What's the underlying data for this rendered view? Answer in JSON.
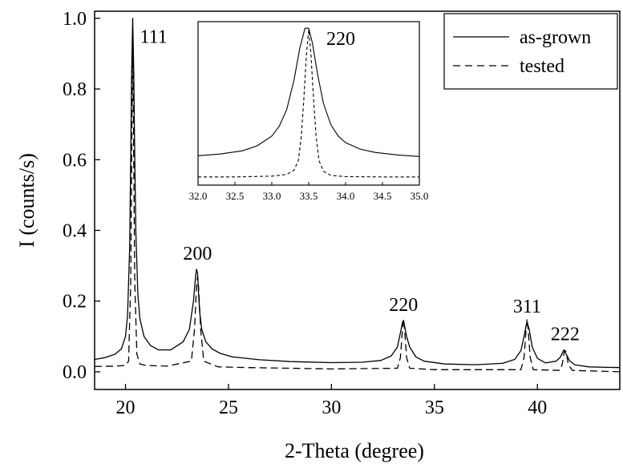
{
  "chart_data": [
    {
      "type": "line",
      "title": "",
      "xlabel": "2-Theta (degree)",
      "ylabel": "I (counts/s)",
      "xlim": [
        18.5,
        44
      ],
      "ylim": [
        -0.05,
        1.02
      ],
      "x_ticks": [
        {
          "value": 20,
          "label": "20"
        },
        {
          "value": 25,
          "label": "25"
        },
        {
          "value": 30,
          "label": "30"
        },
        {
          "value": 35,
          "label": "35"
        },
        {
          "value": 40,
          "label": "40"
        }
      ],
      "y_ticks": [
        {
          "value": 0.0,
          "label": "0.0"
        },
        {
          "value": 0.2,
          "label": "0.2"
        },
        {
          "value": 0.4,
          "label": "0.4"
        },
        {
          "value": 0.6,
          "label": "0.6"
        },
        {
          "value": 0.8,
          "label": "0.8"
        },
        {
          "value": 1.0,
          "label": "1.0"
        }
      ],
      "legend_position": "top-right",
      "grid": false,
      "series": [
        {
          "name": "as-grown",
          "style": "solid",
          "x": [
            18.5,
            19.0,
            19.5,
            19.8,
            20.0,
            20.1,
            20.2,
            20.25,
            20.3,
            20.35,
            20.4,
            20.45,
            20.5,
            20.6,
            20.7,
            20.9,
            21.2,
            21.6,
            22.2,
            22.8,
            23.1,
            23.3,
            23.4,
            23.45,
            23.5,
            23.55,
            23.6,
            23.7,
            23.9,
            24.2,
            24.6,
            25.2,
            26.5,
            28.0,
            30.0,
            31.5,
            32.4,
            32.9,
            33.2,
            33.35,
            33.45,
            33.5,
            33.55,
            33.65,
            33.8,
            34.1,
            34.5,
            35.5,
            37.0,
            38.3,
            38.9,
            39.2,
            39.35,
            39.45,
            39.5,
            39.6,
            39.75,
            40.0,
            40.4,
            40.9,
            41.1,
            41.25,
            41.3,
            41.4,
            41.55,
            41.8,
            42.5,
            44.0
          ],
          "y": [
            0.035,
            0.04,
            0.05,
            0.065,
            0.1,
            0.16,
            0.35,
            0.6,
            0.85,
            1.0,
            0.85,
            0.6,
            0.4,
            0.22,
            0.15,
            0.1,
            0.075,
            0.062,
            0.062,
            0.085,
            0.12,
            0.2,
            0.27,
            0.29,
            0.28,
            0.22,
            0.17,
            0.12,
            0.085,
            0.065,
            0.052,
            0.042,
            0.034,
            0.029,
            0.026,
            0.027,
            0.032,
            0.045,
            0.07,
            0.11,
            0.14,
            0.145,
            0.13,
            0.1,
            0.07,
            0.042,
            0.03,
            0.022,
            0.02,
            0.024,
            0.035,
            0.06,
            0.1,
            0.13,
            0.14,
            0.12,
            0.07,
            0.038,
            0.025,
            0.03,
            0.04,
            0.058,
            0.062,
            0.05,
            0.032,
            0.02,
            0.014,
            0.012
          ]
        },
        {
          "name": "tested",
          "style": "dashed",
          "x": [
            18.5,
            19.5,
            20.0,
            20.15,
            20.25,
            20.3,
            20.35,
            20.4,
            20.45,
            20.55,
            20.7,
            21.0,
            22.0,
            23.2,
            23.35,
            23.45,
            23.5,
            23.55,
            23.65,
            23.8,
            24.5,
            26.0,
            28.0,
            30.0,
            33.2,
            33.35,
            33.45,
            33.5,
            33.55,
            33.65,
            33.8,
            35.0,
            39.2,
            39.35,
            39.45,
            39.5,
            39.55,
            39.65,
            39.8,
            41.1,
            41.2,
            41.3,
            41.35,
            41.4,
            41.5,
            41.7,
            44.0
          ],
          "y": [
            0.015,
            0.016,
            0.018,
            0.03,
            0.25,
            0.6,
            0.96,
            0.6,
            0.25,
            0.05,
            0.022,
            0.018,
            0.016,
            0.03,
            0.12,
            0.24,
            0.27,
            0.24,
            0.12,
            0.03,
            0.014,
            0.012,
            0.01,
            0.008,
            0.01,
            0.04,
            0.12,
            0.15,
            0.12,
            0.04,
            0.01,
            0.006,
            0.006,
            0.04,
            0.12,
            0.15,
            0.12,
            0.04,
            0.006,
            0.004,
            0.02,
            0.055,
            0.06,
            0.055,
            0.02,
            0.004,
            0.0
          ]
        }
      ],
      "annotations": [
        {
          "text": "111",
          "x": 20.35
        },
        {
          "text": "200",
          "x": 23.5
        },
        {
          "text": "220",
          "x": 33.5
        },
        {
          "text": "311",
          "x": 39.5
        },
        {
          "text": "222",
          "x": 41.35
        }
      ]
    },
    {
      "type": "line",
      "title": "",
      "xlabel": "",
      "ylabel": "",
      "xlim": [
        32.0,
        35.0
      ],
      "ylim": [
        0,
        1
      ],
      "x_ticks": [
        {
          "value": 32.0,
          "label": "32.0"
        },
        {
          "value": 32.5,
          "label": "32.5"
        },
        {
          "value": 33.0,
          "label": "33.0"
        },
        {
          "value": 33.5,
          "label": "33.5"
        },
        {
          "value": 34.0,
          "label": "34.0"
        },
        {
          "value": 34.5,
          "label": "34.5"
        },
        {
          "value": 35.0,
          "label": "35.0"
        }
      ],
      "series": [
        {
          "name": "as-grown",
          "style": "solid",
          "x": [
            32.0,
            32.3,
            32.6,
            32.8,
            33.0,
            33.1,
            33.2,
            33.3,
            33.38,
            33.45,
            33.5,
            33.55,
            33.62,
            33.7,
            33.8,
            33.9,
            34.0,
            34.2,
            34.4,
            34.7,
            35.0
          ],
          "y": [
            0.18,
            0.19,
            0.21,
            0.24,
            0.3,
            0.36,
            0.46,
            0.64,
            0.84,
            0.96,
            0.96,
            0.87,
            0.68,
            0.5,
            0.37,
            0.3,
            0.26,
            0.22,
            0.2,
            0.185,
            0.175
          ]
        },
        {
          "name": "tested",
          "style": "dashed",
          "x": [
            32.0,
            32.5,
            33.0,
            33.2,
            33.3,
            33.36,
            33.4,
            33.43,
            33.47,
            33.5,
            33.53,
            33.57,
            33.6,
            33.64,
            33.7,
            33.8,
            34.0,
            34.5,
            35.0
          ],
          "y": [
            0.05,
            0.05,
            0.055,
            0.065,
            0.09,
            0.15,
            0.3,
            0.5,
            0.8,
            0.95,
            0.8,
            0.5,
            0.3,
            0.15,
            0.085,
            0.06,
            0.052,
            0.05,
            0.05
          ]
        }
      ],
      "annotations": [
        {
          "text": "220",
          "x": 33.5
        }
      ]
    }
  ]
}
